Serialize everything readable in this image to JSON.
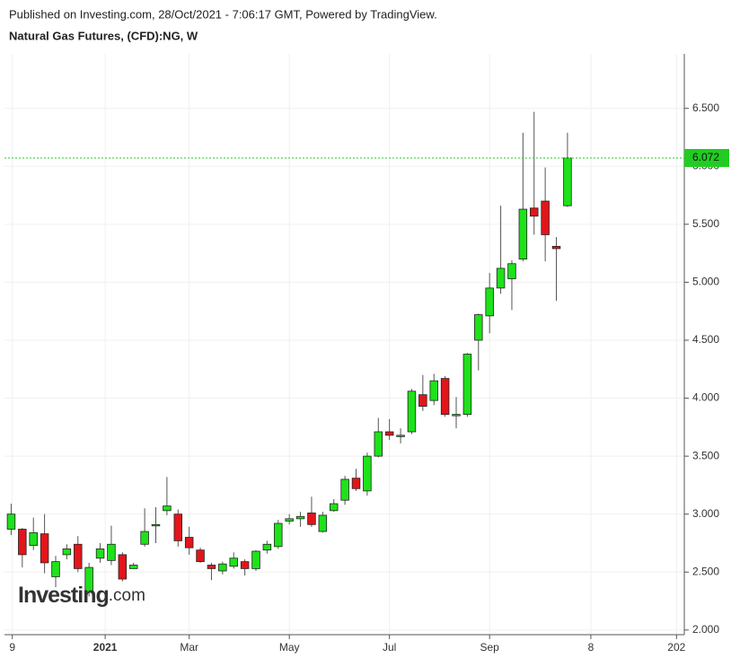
{
  "chart_data": {
    "type": "candlestick",
    "subtitle": "Published on Investing.com, 28/Oct/2021 - 7:06:17 GMT, Powered by TradingView.",
    "title": "Natural Gas Futures, (CFD):NG, W",
    "logo": {
      "name": "Investing",
      "suffix": ".com"
    },
    "x": [
      0,
      1,
      2,
      3,
      4,
      5,
      6,
      7,
      8,
      9,
      10,
      11,
      12,
      13,
      14,
      15,
      16,
      17,
      18,
      19,
      20,
      21,
      22,
      23,
      24,
      25,
      26,
      27,
      28,
      29,
      30,
      31,
      32,
      33,
      34,
      35,
      36,
      37,
      38,
      39,
      40,
      41,
      42,
      43,
      44,
      45,
      46,
      47,
      48,
      49,
      50
    ],
    "open": [
      2.87,
      2.87,
      2.73,
      2.83,
      2.46,
      2.65,
      2.74,
      2.33,
      2.62,
      2.6,
      2.65,
      2.53,
      2.74,
      2.9,
      3.03,
      3.0,
      2.8,
      2.69,
      2.56,
      2.51,
      2.55,
      2.59,
      2.53,
      2.69,
      2.72,
      2.94,
      2.96,
      3.01,
      2.85,
      3.03,
      3.12,
      3.31,
      3.2,
      3.5,
      3.71,
      3.67,
      3.71,
      4.03,
      3.98,
      4.17,
      3.85,
      3.86,
      4.5,
      4.71,
      4.95,
      5.03,
      5.2,
      5.64,
      5.7,
      5.31,
      5.66
    ],
    "high": [
      3.09,
      2.88,
      2.97,
      3.0,
      2.64,
      2.74,
      2.81,
      2.58,
      2.75,
      2.9,
      2.67,
      2.58,
      3.05,
      3.06,
      3.32,
      3.04,
      2.89,
      2.71,
      2.58,
      2.59,
      2.67,
      2.61,
      2.69,
      2.77,
      2.95,
      3.0,
      3.02,
      3.15,
      3.02,
      3.13,
      3.33,
      3.39,
      3.53,
      3.83,
      3.82,
      3.74,
      4.08,
      4.2,
      4.21,
      4.19,
      4.01,
      4.39,
      4.73,
      5.08,
      5.66,
      5.19,
      6.29,
      6.47,
      5.99,
      5.39,
      6.29
    ],
    "low": [
      2.82,
      2.54,
      2.69,
      2.49,
      2.37,
      2.61,
      2.5,
      2.29,
      2.58,
      2.56,
      2.42,
      2.53,
      2.72,
      2.75,
      2.99,
      2.72,
      2.65,
      2.58,
      2.43,
      2.48,
      2.53,
      2.47,
      2.51,
      2.66,
      2.7,
      2.91,
      2.89,
      2.89,
      2.84,
      3.02,
      3.08,
      3.2,
      3.16,
      3.49,
      3.64,
      3.61,
      3.69,
      3.89,
      3.94,
      3.84,
      3.74,
      3.84,
      4.24,
      4.56,
      4.9,
      4.76,
      5.18,
      5.41,
      5.18,
      4.84,
      5.65
    ],
    "close": [
      3.0,
      2.65,
      2.84,
      2.58,
      2.59,
      2.7,
      2.53,
      2.54,
      2.7,
      2.74,
      2.44,
      2.56,
      2.85,
      2.91,
      3.07,
      2.77,
      2.71,
      2.59,
      2.53,
      2.57,
      2.62,
      2.53,
      2.68,
      2.74,
      2.92,
      2.96,
      2.98,
      2.91,
      2.99,
      3.09,
      3.3,
      3.22,
      3.5,
      3.71,
      3.68,
      3.68,
      4.06,
      3.93,
      4.15,
      3.86,
      3.86,
      4.38,
      4.72,
      4.95,
      5.12,
      5.16,
      5.63,
      5.57,
      5.41,
      5.29,
      6.072
    ],
    "up_color": "#1ee21a",
    "down_color": "#e3151b",
    "xlim": [
      -0.6,
      60.5
    ],
    "xticks": [
      {
        "value": 0.1,
        "label": "9"
      },
      {
        "value": 8.45,
        "label": "2021"
      },
      {
        "value": 16,
        "label": "Mar"
      },
      {
        "value": 25,
        "label": "May"
      },
      {
        "value": 34,
        "label": "Jul"
      },
      {
        "value": 43,
        "label": "Sep"
      },
      {
        "value": 52.1,
        "label": "8"
      },
      {
        "value": 59.8,
        "label": "202"
      }
    ],
    "ylim": [
      1.96,
      6.97
    ],
    "yticks": [
      {
        "value": 2,
        "label": "2.000"
      },
      {
        "value": 2.5,
        "label": "2.500"
      },
      {
        "value": 3,
        "label": "3.000"
      },
      {
        "value": 3.5,
        "label": "3.500"
      },
      {
        "value": 4,
        "label": "4.000"
      },
      {
        "value": 4.5,
        "label": "4.500"
      },
      {
        "value": 5,
        "label": "5.000"
      },
      {
        "value": 5.5,
        "label": "5.500"
      },
      {
        "value": 6,
        "label": "6.000"
      },
      {
        "value": 6.5,
        "label": "6.500"
      }
    ],
    "price_line": {
      "value": 6.072,
      "color": "#22cc22"
    },
    "grid": true
  }
}
